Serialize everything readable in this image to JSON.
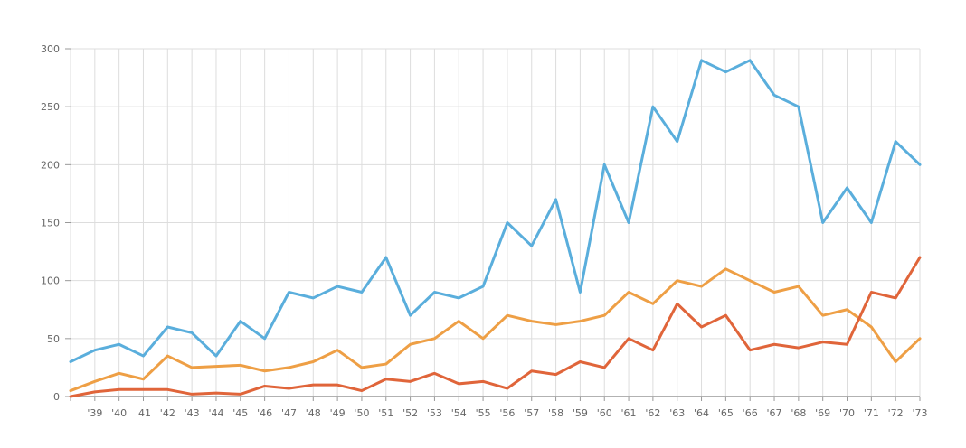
{
  "chart_data": {
    "type": "line",
    "title": "",
    "xlabel": "",
    "ylabel": "",
    "x": [
      1938,
      1939,
      1940,
      1941,
      1942,
      1943,
      1944,
      1945,
      1946,
      1947,
      1948,
      1949,
      1950,
      1951,
      1952,
      1953,
      1954,
      1955,
      1956,
      1957,
      1958,
      1959,
      1960,
      1961,
      1962,
      1963,
      1964,
      1965,
      1966,
      1967,
      1968,
      1969,
      1970,
      1971,
      1972,
      1973
    ],
    "x_tick_labels": [
      "",
      "'39",
      "'40",
      "'41",
      "'42",
      "'43",
      "'44",
      "'45",
      "'46",
      "'47",
      "'48",
      "'49",
      "'50",
      "'51",
      "'52",
      "'53",
      "'54",
      "'55",
      "'56",
      "'57",
      "'58",
      "'59",
      "'60",
      "'61",
      "'62",
      "'63",
      "'64",
      "'65",
      "'66",
      "'67",
      "'68",
      "'69",
      "'70",
      "'71",
      "'72",
      "'73"
    ],
    "ylim": [
      0,
      300
    ],
    "y_ticks": [
      0,
      50,
      100,
      150,
      200,
      250,
      300
    ],
    "grid": true,
    "legend": "none",
    "series": [
      {
        "color": "#5aaedc",
        "values": [
          30,
          40,
          45,
          35,
          60,
          55,
          35,
          65,
          50,
          90,
          85,
          95,
          90,
          120,
          70,
          90,
          85,
          95,
          150,
          130,
          170,
          90,
          200,
          150,
          250,
          220,
          290,
          280,
          290,
          260,
          250,
          150,
          180,
          150,
          220,
          200
        ]
      },
      {
        "color": "#ee9f45",
        "values": [
          5,
          13,
          20,
          15,
          35,
          25,
          26,
          27,
          22,
          25,
          30,
          40,
          25,
          28,
          45,
          50,
          65,
          50,
          70,
          65,
          62,
          65,
          70,
          90,
          80,
          100,
          95,
          110,
          100,
          90,
          95,
          70,
          75,
          60,
          30,
          50
        ]
      },
      {
        "color": "#e0653a",
        "values": [
          0,
          4,
          6,
          6,
          6,
          2,
          3,
          2,
          9,
          7,
          10,
          10,
          5,
          15,
          13,
          20,
          11,
          13,
          7,
          22,
          19,
          30,
          25,
          50,
          40,
          80,
          60,
          70,
          40,
          45,
          42,
          47,
          45,
          90,
          85,
          120
        ]
      }
    ]
  }
}
